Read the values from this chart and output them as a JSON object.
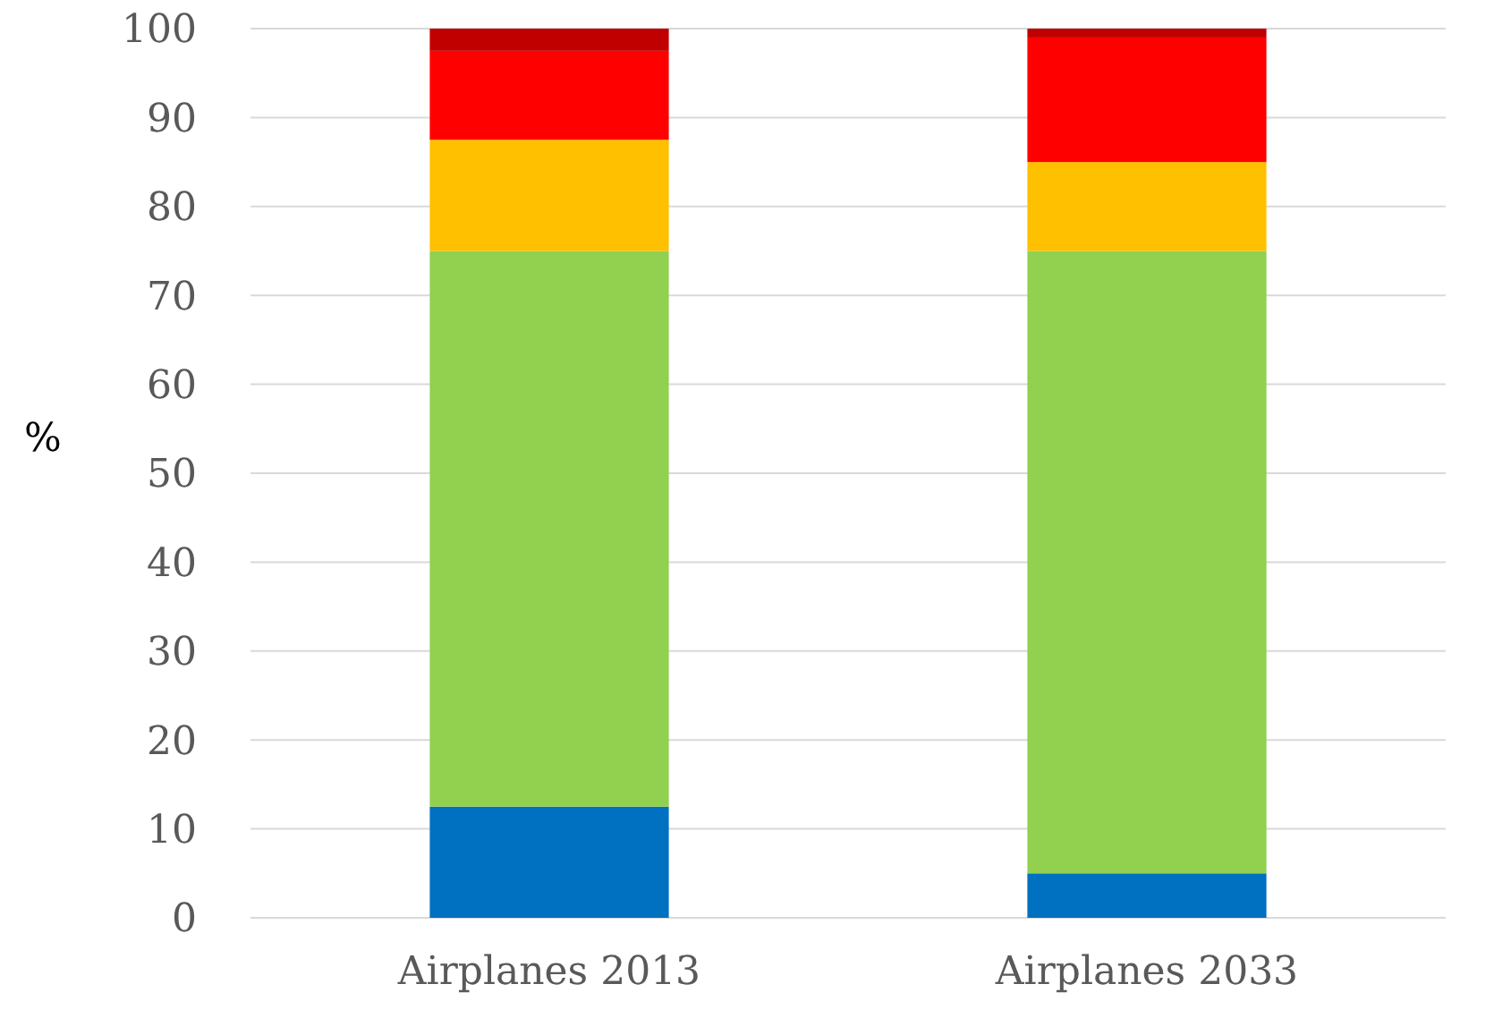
{
  "chart_data": {
    "type": "bar",
    "stacked": true,
    "ylabel": "%",
    "categories": [
      "Airplanes 2013",
      "Airplanes 2033"
    ],
    "series": [
      {
        "color": "#0070c0",
        "values": [
          12.5,
          5
        ]
      },
      {
        "color": "#92d050",
        "values": [
          62.5,
          70
        ]
      },
      {
        "color": "#ffc000",
        "values": [
          12.5,
          10
        ]
      },
      {
        "color": "#ff0000",
        "values": [
          10,
          14
        ]
      },
      {
        "color": "#c00000",
        "values": [
          2.5,
          1
        ]
      }
    ],
    "ylim": [
      0,
      100
    ],
    "yticks": [
      0,
      10,
      20,
      30,
      40,
      50,
      60,
      70,
      80,
      90,
      100
    ],
    "grid": "y"
  }
}
